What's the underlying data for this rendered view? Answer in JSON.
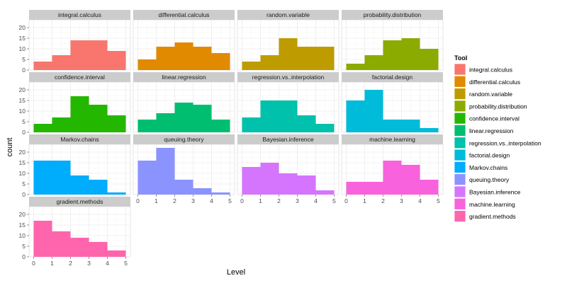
{
  "chart_data": {
    "type": "bar",
    "subtype": "faceted-histogram",
    "xlabel": "Level",
    "ylabel": "count",
    "x_ticks": [
      0,
      1,
      2,
      3,
      4,
      5
    ],
    "y_ticks": [
      0,
      5,
      10,
      15,
      20
    ],
    "xlim": [
      0,
      5
    ],
    "ylim": [
      0,
      22
    ],
    "grid": true,
    "legend": {
      "title": "Tool",
      "placement": "right"
    },
    "bins": [
      [
        0,
        1
      ],
      [
        1,
        2
      ],
      [
        2,
        3
      ],
      [
        3,
        4
      ],
      [
        4,
        5
      ]
    ],
    "series": [
      {
        "name": "integral.calculus",
        "color": "#F8766D",
        "values": [
          4,
          7,
          14,
          14,
          9
        ]
      },
      {
        "name": "differential.calculus",
        "color": "#E18A00",
        "values": [
          5,
          11,
          13,
          11,
          8
        ]
      },
      {
        "name": "random.variable",
        "color": "#BE9C00",
        "values": [
          4,
          7,
          15,
          11,
          11
        ]
      },
      {
        "name": "probability.distribution",
        "color": "#8CAB00",
        "values": [
          3,
          7,
          14,
          15,
          10
        ]
      },
      {
        "name": "confidence.interval",
        "color": "#24B700",
        "values": [
          4,
          7,
          17,
          13,
          8
        ]
      },
      {
        "name": "linear.regression",
        "color": "#00BE70",
        "values": [
          6,
          9,
          14,
          13,
          6
        ]
      },
      {
        "name": "regression.vs..interpolation",
        "color": "#00C1AB",
        "values": [
          7,
          15,
          15,
          8,
          4
        ]
      },
      {
        "name": "factorial.design",
        "color": "#00BBDA",
        "values": [
          15,
          20,
          6,
          6,
          2
        ]
      },
      {
        "name": "Markov.chains",
        "color": "#00ACFC",
        "values": [
          16,
          16,
          9,
          7,
          1
        ]
      },
      {
        "name": "queuing.theory",
        "color": "#8B93FF",
        "values": [
          16,
          22,
          7,
          3,
          1
        ]
      },
      {
        "name": "Bayesian.inference",
        "color": "#D575FE",
        "values": [
          13,
          15,
          10,
          9,
          2
        ]
      },
      {
        "name": "machine.learning",
        "color": "#F962DD",
        "values": [
          6,
          6,
          16,
          14,
          7
        ]
      },
      {
        "name": "gradient.methods",
        "color": "#FF65AC",
        "values": [
          17,
          12,
          9,
          7,
          3
        ]
      }
    ]
  }
}
